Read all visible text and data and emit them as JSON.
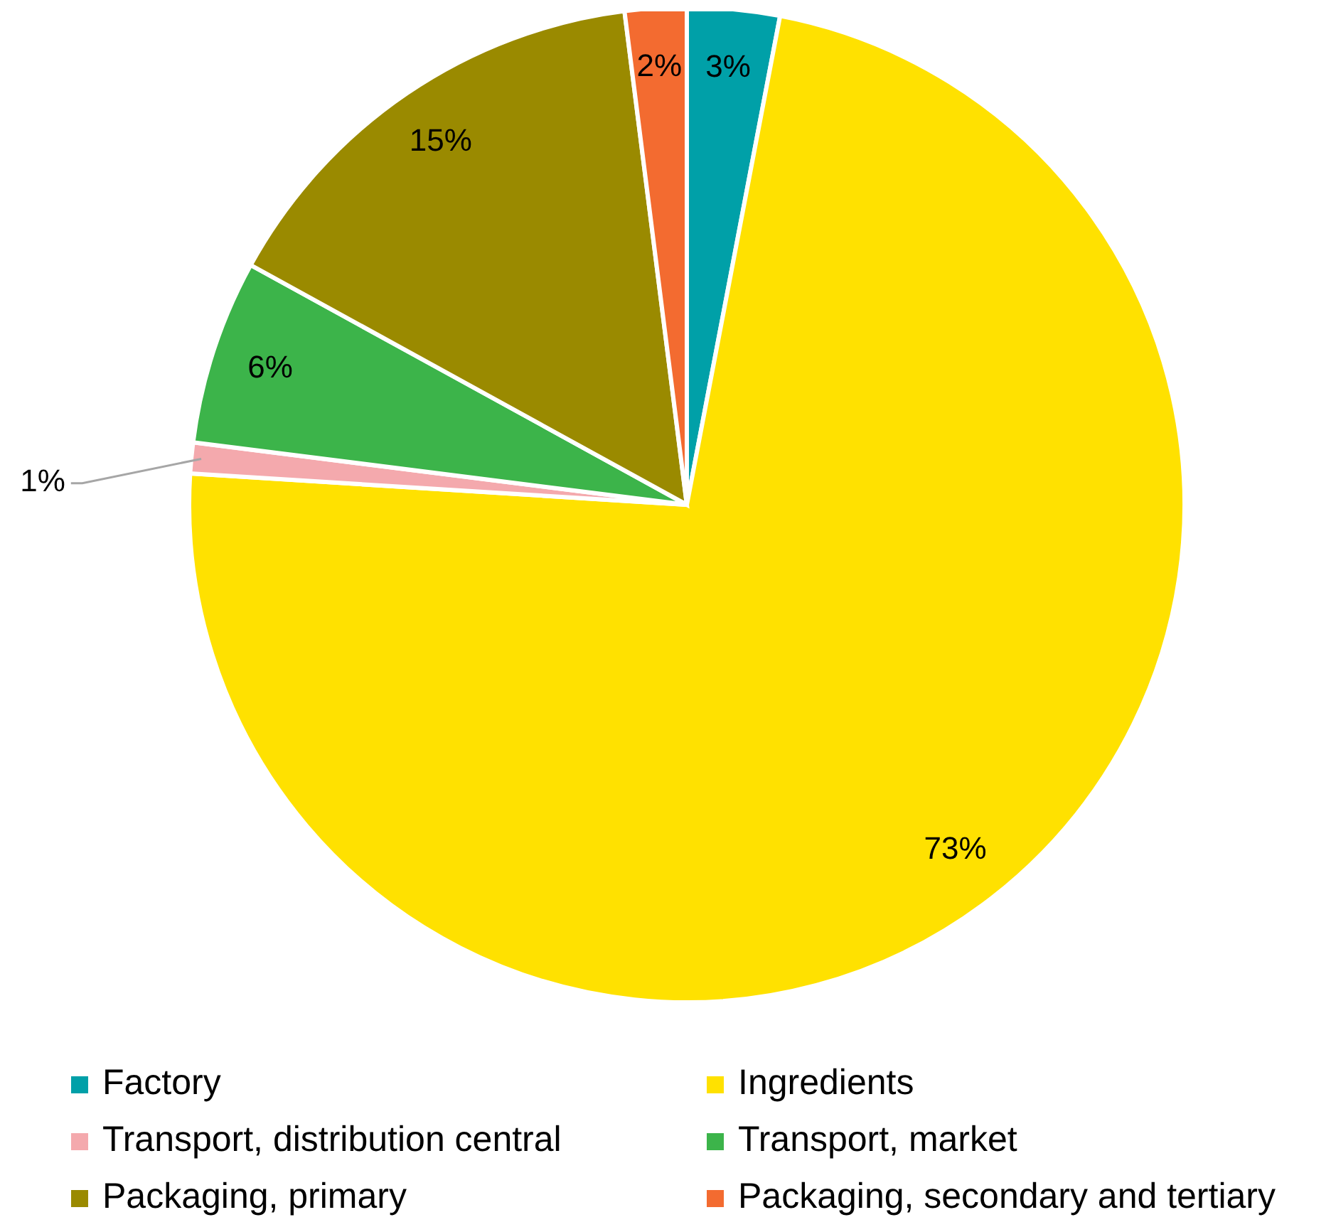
{
  "chart_data": {
    "type": "pie",
    "categories": [
      "Factory",
      "Ingredients",
      "Transport, distribution central",
      "Transport, market",
      "Packaging, primary",
      "Packaging, secondary and tertiary"
    ],
    "values": [
      3,
      73,
      1,
      6,
      15,
      2
    ],
    "colors": [
      "#00a0a8",
      "#ffe100",
      "#f4a9ad",
      "#3cb44a",
      "#9a8a00",
      "#f36b30"
    ],
    "value_labels": [
      "3%",
      "73%",
      "1%",
      "6%",
      "15%",
      "2%"
    ],
    "legend": "bottom"
  }
}
